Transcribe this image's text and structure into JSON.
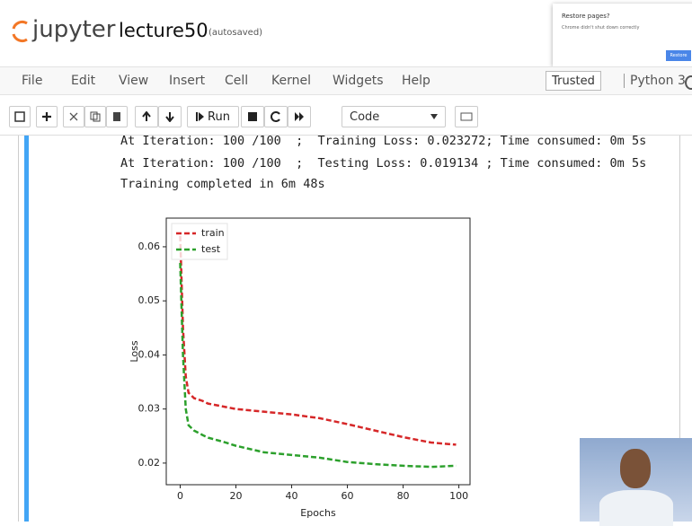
{
  "browser_popup": {
    "title": "Restore pages?",
    "message": "Chrome didn't shut down correctly",
    "button": "Restore"
  },
  "header": {
    "logo": "jupyter",
    "notebook": "lecture50",
    "status": "(autosaved)"
  },
  "menu": {
    "items": [
      "File",
      "Edit",
      "View",
      "Insert",
      "Cell",
      "Kernel",
      "Widgets",
      "Help"
    ],
    "trusted": "Trusted",
    "kernel": "Python 3"
  },
  "toolbar": {
    "run": "Run",
    "cell_type": "Code"
  },
  "output": {
    "lines": [
      "At Iteration: 100 /100  ;  Training Loss: 0.023272; Time consumed: 0m 5s",
      "At Iteration: 100 /100  ;  Testing Loss: 0.019134 ; Time consumed: 0m 5s",
      "Training completed in 6m 48s"
    ]
  },
  "chart_data": {
    "type": "line",
    "xlabel": "Epochs",
    "ylabel": "Loss",
    "x": [
      0,
      1,
      2,
      3,
      5,
      8,
      10,
      15,
      20,
      30,
      40,
      50,
      60,
      70,
      80,
      90,
      99
    ],
    "series": [
      {
        "name": "train",
        "color": "#d62728",
        "values": [
          0.062,
          0.045,
          0.036,
          0.033,
          0.032,
          0.0315,
          0.031,
          0.0305,
          0.03,
          0.0295,
          0.029,
          0.0283,
          0.0272,
          0.026,
          0.0248,
          0.0238,
          0.0234
        ]
      },
      {
        "name": "test",
        "color": "#2ca02c",
        "values": [
          0.057,
          0.04,
          0.03,
          0.027,
          0.026,
          0.0252,
          0.0247,
          0.024,
          0.0232,
          0.022,
          0.0215,
          0.021,
          0.0202,
          0.0198,
          0.0195,
          0.0193,
          0.0195
        ]
      }
    ],
    "xlim": [
      -5,
      104
    ],
    "ylim": [
      0.016,
      0.0653
    ],
    "xticks": [
      0,
      20,
      40,
      60,
      80,
      100
    ],
    "yticks": [
      0.02,
      0.03,
      0.04,
      0.05,
      0.06
    ],
    "legend": "upper left",
    "dashed": true
  }
}
